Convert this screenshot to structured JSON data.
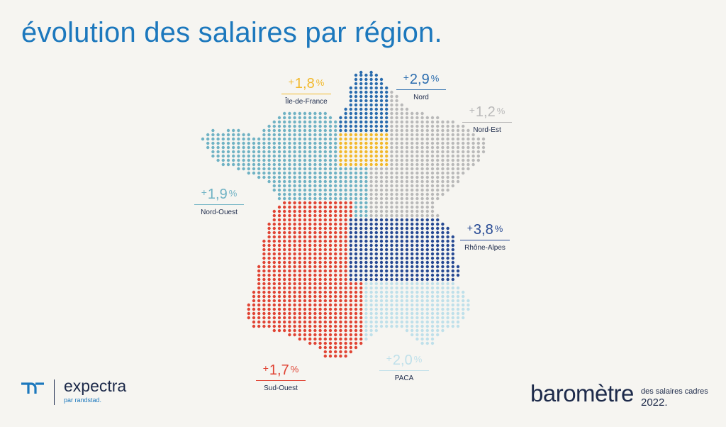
{
  "title": "évolution des salaires par région.",
  "regions": {
    "ile_de_france": {
      "name": "Île-de-France",
      "sign": "+",
      "value": "1,8",
      "unit": "%",
      "color": "#f2b82a"
    },
    "nord": {
      "name": "Nord",
      "sign": "+",
      "value": "2,9",
      "unit": "%",
      "color": "#2a6cae"
    },
    "nord_est": {
      "name": "Nord-Est",
      "sign": "+",
      "value": "1,2",
      "unit": "%",
      "color": "#b9b9b9"
    },
    "nord_ouest": {
      "name": "Nord-Ouest",
      "sign": "+",
      "value": "1,9",
      "unit": "%",
      "color": "#6fb2c4"
    },
    "rhone_alpes": {
      "name": "Rhône-Alpes",
      "sign": "+",
      "value": "3,8",
      "unit": "%",
      "color": "#274a94"
    },
    "sud_ouest": {
      "name": "Sud-Ouest",
      "sign": "+",
      "value": "1,7",
      "unit": "%",
      "color": "#e04333"
    },
    "paca": {
      "name": "PACA",
      "sign": "+",
      "value": "2,0",
      "unit": "%",
      "color": "#bfe0ea"
    }
  },
  "logo": {
    "name": "expectra",
    "tagline": "par randstad."
  },
  "barometre": {
    "title": "baromètre",
    "subtitle": "des salaires cadres",
    "year": "2022."
  },
  "colors": {
    "title": "#1c78bd",
    "text_dark": "#1d2a4a",
    "background": "#f6f5f1"
  }
}
